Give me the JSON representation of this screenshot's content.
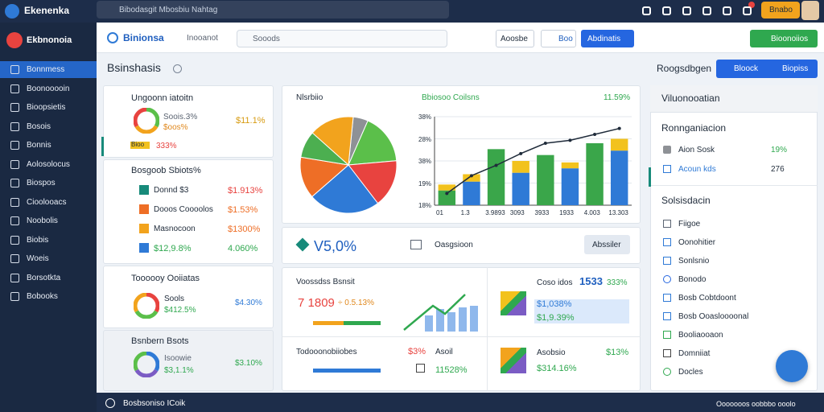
{
  "topbar": {
    "brand": "Ekenenka",
    "search": "Bibodasgit Mbosbiu Nahtag",
    "button": "Bnabo"
  },
  "sidebar": {
    "brand": "Ekbnonoia",
    "items": [
      "Bonnmess",
      "Boonooooin",
      "Bioopsietis",
      "Bosois",
      "Bonnis",
      "Aolosolocus",
      "Biospos",
      "Cioolooacs",
      "Noobolis",
      "Biobis",
      "Woeis",
      "Borsotkta",
      "Bobooks"
    ]
  },
  "toolbar": {
    "brand": "Binionsa",
    "link": "Inooanot",
    "search": "Sooods",
    "buttons": [
      "Aoosbe",
      "Boo",
      "Abdinatis",
      "Bioonoiios"
    ]
  },
  "page": {
    "title": "Bsinshasis",
    "label": "Roogsdbgen",
    "actions": [
      "Bloock",
      "Biopiss"
    ]
  },
  "cards": [
    {
      "title": "Ungoonn iatoitn",
      "lines": [
        "Soois.3%",
        "$oos%"
      ],
      "value": "$11.1%",
      "tag": "Bioo",
      "pct": "333%"
    },
    {
      "title": "Bosgoob Sbiots%",
      "rows": [
        [
          "Donnd $3",
          "$1.913%"
        ],
        [
          "Dooos Coooolos",
          "$1.53%"
        ],
        [
          "Masnocoon",
          "$1300%"
        ],
        [
          "$12,9.8%",
          "4.060%"
        ]
      ]
    },
    {
      "title": "Toooooy Ooiiatas",
      "lines": [
        "Sools",
        "$412.5%"
      ],
      "value": "$4.30%"
    },
    {
      "title": "Bsnbern Bsots",
      "lines": [
        "Isoowie",
        "$3,1.1%"
      ],
      "value": "$3.10%"
    }
  ],
  "chart_card": {
    "pie_title": "Nlsrbiio",
    "pie": {
      "values": [
        5,
        17,
        16,
        24,
        14,
        9,
        15
      ],
      "colors": [
        "#8e9196",
        "#5bbf4a",
        "#e8433f",
        "#2f7ad6",
        "#ee6e26",
        "#4caf50",
        "#f2a31d"
      ]
    },
    "bar_title": "Bbiosoo Coilsns",
    "bar_value": "11.59%",
    "ylim": [
      0,
      60
    ],
    "y_labels": [
      "38%",
      "28%",
      "38%",
      "19%",
      "18%"
    ],
    "x_labels": [
      "01",
      "1.3",
      "3.9893",
      "3093",
      "3933",
      "1933",
      "4.003",
      "13.303"
    ],
    "series": [
      {
        "color": "#2f7ad6",
        "values": [
          10,
          16,
          38,
          22,
          34,
          25,
          42,
          37
        ]
      },
      {
        "color": "#f2c21d",
        "values": [
          4,
          5,
          0,
          8,
          0,
          4,
          0,
          8
        ]
      }
    ],
    "line": {
      "color": "#1f2b3a",
      "values": [
        8,
        20,
        27,
        35,
        42,
        44,
        48,
        52
      ]
    }
  },
  "kpi": {
    "value": "V5,0%",
    "label": "Oasgsioon",
    "button": "Abssiler"
  },
  "tiles": [
    {
      "title": "Voossdss Bsnsit",
      "value": "7 1809",
      "delta": "÷ 0.5.13%"
    },
    {
      "title": "Coso idos",
      "value": "1533",
      "delta": "333%",
      "lines": [
        "$1,038%",
        "$1,9.39%"
      ]
    },
    {
      "title": "Todooonobiiobes",
      "value": "$3%",
      "extra": "Asoil",
      "delta": "11528%"
    },
    {
      "title": "Asobsio",
      "value": "$13%",
      "lines": [
        "$314.16%"
      ]
    }
  ],
  "panel": {
    "header": "Viluonooatian",
    "section1": "Ronnganiacion",
    "rows": [
      [
        "Aion Sosk",
        "19%"
      ],
      [
        "Acoun kds",
        "276"
      ]
    ],
    "section2": "Solsisdacin",
    "items": [
      "Fiigoe",
      "Oonohitier",
      "Sonlsnio",
      "Bonodo",
      "Bosb Cobtdoont",
      "Bosb Ooasloooonal",
      "Booliaooaon",
      "Domniiat",
      "Docles"
    ]
  },
  "footer": {
    "left": "Bosbsoniso ICoik",
    "right": "Ooooooos oobbbo ooolo"
  }
}
